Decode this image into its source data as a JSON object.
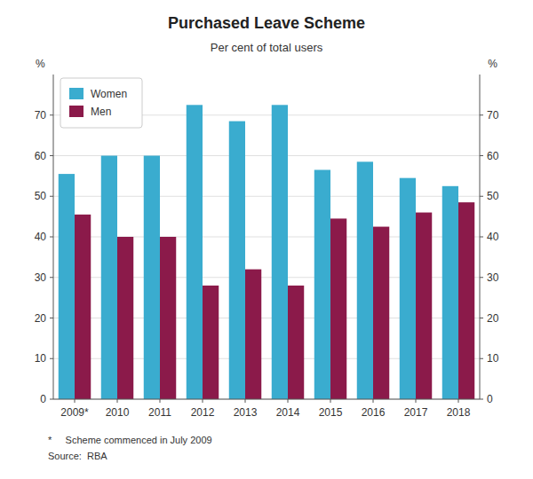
{
  "chart_data": {
    "type": "bar",
    "title": "Purchased Leave Scheme",
    "subtitle": "Per cent of total users",
    "ylabel": "%",
    "y2label": "%",
    "categories": [
      "2009*",
      "2010",
      "2011",
      "2012",
      "2013",
      "2014",
      "2015",
      "2016",
      "2017",
      "2018"
    ],
    "series": [
      {
        "name": "Women",
        "color": "#3AACCF",
        "values": [
          55.5,
          60.0,
          60.0,
          72.5,
          68.5,
          72.5,
          56.5,
          58.5,
          54.5,
          52.5
        ]
      },
      {
        "name": "Men",
        "color": "#8B1A4A",
        "values": [
          45.5,
          40.0,
          40.0,
          28.0,
          32.0,
          28.0,
          44.5,
          42.5,
          46.0,
          48.5
        ]
      }
    ],
    "ylim": [
      0,
      80
    ],
    "yticks": [
      0,
      10,
      20,
      30,
      40,
      50,
      60,
      70
    ],
    "y2lim": [
      0,
      80
    ],
    "y2ticks": [
      0,
      10,
      20,
      30,
      40,
      50,
      60,
      70
    ],
    "grid": true,
    "legend": "upper left",
    "annotations": [
      "*     Scheme commenced in July 2009",
      "Source:  RBA"
    ]
  }
}
